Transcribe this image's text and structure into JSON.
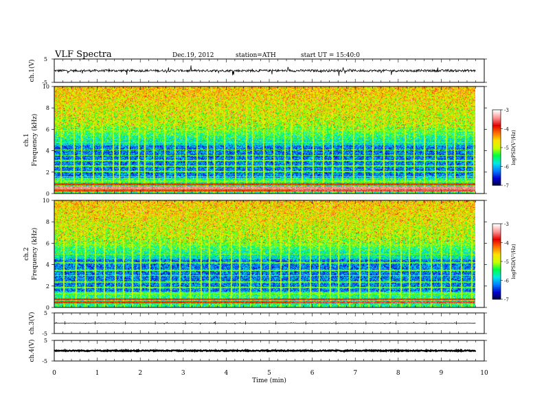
{
  "header": {
    "title": "VLF Spectra",
    "date": "Dec.19, 2012",
    "station": "station=ATH",
    "start": "start UT = 15:40:0"
  },
  "colorbar": {
    "label": "logPSD(V²/Hz)",
    "ticks": [
      "-3",
      "-4",
      "-5",
      "-6",
      "-7"
    ],
    "colors": [
      "#00003c",
      "#0000d0",
      "#0080ff",
      "#00e8e8",
      "#00ff40",
      "#c8ff00",
      "#ffe000",
      "#ff7000",
      "#e00000",
      "#ff9090",
      "#ffffff"
    ]
  },
  "chart_data": [
    {
      "type": "line",
      "name": "ch1-waveform",
      "ylabel": "ch.1(V)",
      "ylim": [
        -5,
        5
      ],
      "yticks": [
        "5",
        "-5"
      ],
      "xlim": [
        0,
        10
      ],
      "baseline": 0,
      "description_values": {
        "noise_amplitude": 0.5,
        "spike_amplitude": 2.0
      }
    },
    {
      "type": "heatmap",
      "name": "ch1-spectrogram",
      "ylabel": "ch.1",
      "ylabel2": "Frequency (kHz)",
      "ylim": [
        0,
        10
      ],
      "yticks": [
        "0",
        "2",
        "4",
        "6",
        "8",
        "10"
      ],
      "xlim": [
        0,
        10
      ],
      "data_end_min": 9.8,
      "zlim": [
        -7,
        -3
      ],
      "strong_line_khz": [
        0.3,
        0.6,
        0.9
      ],
      "strong_line_level": [
        -3.6,
        -3.4,
        -4.0
      ],
      "steady_lines_khz": [
        1.2,
        1.6,
        2.1,
        2.6,
        3.1,
        3.6,
        4.1,
        4.8,
        5.9
      ],
      "spike_times_min": [
        0.15,
        0.45,
        0.62,
        0.9,
        1.1,
        1.35,
        1.5,
        1.72,
        1.95,
        2.1,
        2.3,
        2.55,
        2.8,
        3.05,
        3.3,
        3.55,
        3.7,
        3.95,
        4.2,
        4.45,
        4.6,
        4.85,
        5.1,
        5.35,
        5.5,
        5.75,
        6.0,
        6.25,
        6.45,
        6.7,
        6.95,
        7.2,
        7.4,
        7.65,
        7.9,
        8.15,
        8.35,
        8.6,
        8.85,
        9.1,
        9.3,
        9.55,
        9.75
      ]
    },
    {
      "type": "heatmap",
      "name": "ch2-spectrogram",
      "ylabel": "ch.2",
      "ylabel2": "Frequency (kHz)",
      "ylim": [
        0,
        10
      ],
      "yticks": [
        "0",
        "2",
        "4",
        "6",
        "8",
        "10"
      ],
      "xlim": [
        0,
        10
      ],
      "data_end_min": 9.8,
      "zlim": [
        -7,
        -3
      ],
      "strong_line_khz": [
        0.5,
        0.8
      ],
      "strong_line_level": [
        -3.6,
        -3.9
      ],
      "steady_lines_khz": [
        1.3,
        1.9,
        2.4,
        3.0,
        3.5,
        4.2,
        5.0,
        5.9
      ],
      "spike_times_min": [
        0.2,
        0.5,
        0.7,
        0.95,
        1.15,
        1.4,
        1.6,
        1.8,
        2.0,
        2.2,
        2.45,
        2.7,
        2.9,
        3.15,
        3.4,
        3.6,
        3.85,
        4.1,
        4.3,
        4.55,
        4.8,
        5.0,
        5.25,
        5.45,
        5.7,
        5.95,
        6.15,
        6.4,
        6.6,
        6.85,
        7.1,
        7.3,
        7.55,
        7.8,
        8.05,
        8.25,
        8.5,
        8.75,
        9.0,
        9.2,
        9.45,
        9.7
      ]
    },
    {
      "type": "line",
      "name": "ch3-waveform",
      "ylabel": "ch.3(V)",
      "ylim": [
        -5,
        5
      ],
      "yticks": [
        "5",
        "-5"
      ],
      "xlim": [
        0,
        10
      ],
      "baseline": 0,
      "description_values": {
        "noise_amplitude": 0.05,
        "spike_amplitude": 0.4
      }
    },
    {
      "type": "line",
      "name": "ch4-waveform",
      "ylabel": "ch.4(V)",
      "ylim": [
        -5,
        5
      ],
      "yticks": [
        "5",
        "-5"
      ],
      "xlim": [
        0,
        10
      ],
      "baseline": 0,
      "description_values": {
        "noise_amplitude": 0.25,
        "spike_amplitude": 0.25
      }
    }
  ],
  "xaxis": {
    "label": "Time (min)",
    "ticks": [
      "0",
      "1",
      "2",
      "3",
      "4",
      "5",
      "6",
      "7",
      "8",
      "9",
      "10"
    ]
  }
}
